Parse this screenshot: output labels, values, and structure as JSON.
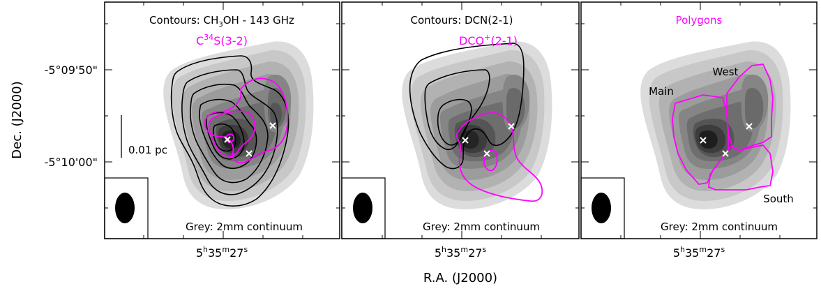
{
  "figure": {
    "xlabel": "R.A. (J2000)",
    "ylabel": "Dec. (J2000)",
    "scalebar_label": "0.01 pc",
    "colors": {
      "magenta": "#ff00ff",
      "black_contour": "#000000",
      "marker": "#ffffff",
      "grey_darkest": "#1a1a1a",
      "grey_lightest": "#d9d9d9"
    }
  },
  "chart_data": [
    {
      "type": "heatmap",
      "panel": "left",
      "contour_label_black": "Contours: CH3OH - 143 GHz",
      "contour_label_black_parts": [
        "Contours: CH",
        "3",
        "OH - 143 GHz"
      ],
      "contour_label_magenta": "C34S(3-2)",
      "contour_label_magenta_parts": [
        "C",
        "34",
        "S(3-2)"
      ],
      "background_label": "Grey: 2mm continuum",
      "x_tick_label": [
        "5",
        "h",
        "35",
        "m",
        "27",
        "s"
      ],
      "y_tick_labels": [
        "-5°09'50\"",
        "-5°10'00\""
      ],
      "markers": 3,
      "beam": "ellipse"
    },
    {
      "type": "heatmap",
      "panel": "middle",
      "contour_label_black": "Contours: DCN(2-1)",
      "contour_label_magenta": "DCO+(2-1)",
      "contour_label_magenta_parts": [
        "DCO",
        "+",
        "(2-1)"
      ],
      "background_label": "Grey: 2mm continuum",
      "x_tick_label": [
        "5",
        "h",
        "35",
        "m",
        "27",
        "s"
      ],
      "markers": 3,
      "beam": "ellipse"
    },
    {
      "type": "heatmap",
      "panel": "right",
      "contour_label_magenta": "Polygons",
      "region_labels": [
        "Main",
        "West",
        "South"
      ],
      "background_label": "Grey: 2mm continuum",
      "x_tick_label": [
        "5",
        "h",
        "35",
        "m",
        "27",
        "s"
      ],
      "markers": 3,
      "beam": "ellipse"
    }
  ]
}
